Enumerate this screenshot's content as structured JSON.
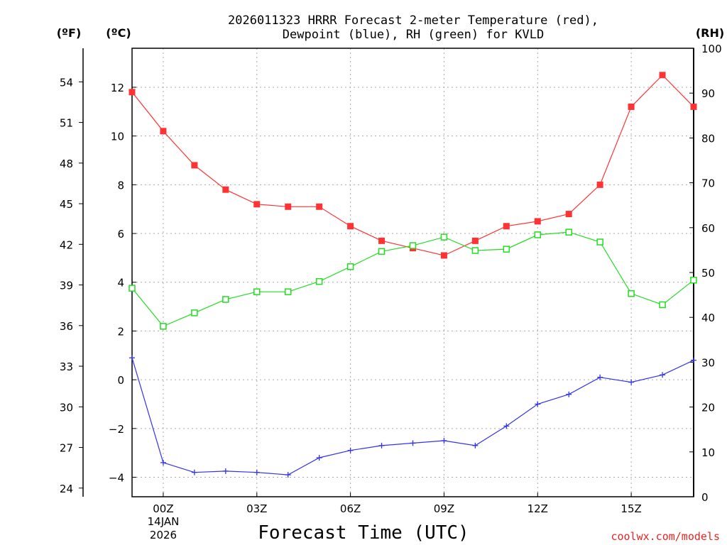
{
  "chart_data": {
    "type": "line",
    "title_line1": "2026011323 HRRR Forecast 2-meter Temperature (red),",
    "title_line2": "Dewpoint (blue), RH (green) for KVLD",
    "xlabel": "Forecast Time (UTC)",
    "unit_f": "(ºF)",
    "unit_c": "(ºC)",
    "unit_rh": "(RH)",
    "date_line1": "14JAN",
    "date_line2": "2026",
    "credit": "coolwx.com/models",
    "x_hours": [
      -1,
      0,
      1,
      2,
      3,
      4,
      5,
      6,
      7,
      8,
      9,
      10,
      11,
      12,
      13,
      14,
      15,
      16,
      17
    ],
    "x_range": [
      -1,
      17
    ],
    "x_ticks": [
      {
        "h": 0,
        "label": "00Z"
      },
      {
        "h": 3,
        "label": "03Z"
      },
      {
        "h": 6,
        "label": "06Z"
      },
      {
        "h": 9,
        "label": "09Z"
      },
      {
        "h": 12,
        "label": "12Z"
      },
      {
        "h": 15,
        "label": "15Z"
      }
    ],
    "y_c_range": [
      -4.8,
      13.6
    ],
    "y_c_ticks": [
      -4,
      -2,
      0,
      2,
      4,
      6,
      8,
      10,
      12
    ],
    "y_f_ticks": [
      24,
      27,
      30,
      33,
      36,
      39,
      42,
      45,
      48,
      51,
      54
    ],
    "y_rh_range": [
      0,
      100
    ],
    "y_rh_ticks": [
      0,
      10,
      20,
      30,
      40,
      50,
      60,
      70,
      80,
      90,
      100
    ],
    "series": [
      {
        "name": "Temperature",
        "color": "#ff3333",
        "marker": "filled-square",
        "axis": "celsius",
        "values": [
          11.8,
          10.2,
          8.8,
          7.8,
          7.2,
          7.1,
          7.1,
          6.3,
          5.7,
          5.4,
          5.1,
          5.7,
          6.3,
          6.5,
          6.8,
          8.0,
          11.2,
          12.5,
          11.2
        ]
      },
      {
        "name": "Dewpoint",
        "color": "#3333ee",
        "marker": "plus",
        "axis": "celsius",
        "values": [
          0.9,
          -3.4,
          -3.8,
          -3.75,
          -3.8,
          -3.9,
          -3.2,
          -2.9,
          -2.7,
          -2.6,
          -2.5,
          -2.7,
          -1.9,
          -1.0,
          -0.6,
          0.1,
          -0.1,
          0.2,
          0.8
        ]
      },
      {
        "name": "RH",
        "color": "#22dd22",
        "marker": "open-square",
        "axis": "rh",
        "values": [
          46.5,
          38.0,
          41.0,
          44.0,
          45.7,
          45.7,
          48.0,
          51.3,
          54.7,
          56.0,
          57.9,
          54.9,
          55.2,
          58.4,
          59.0,
          56.8,
          45.3,
          42.8,
          48.3
        ]
      }
    ]
  }
}
